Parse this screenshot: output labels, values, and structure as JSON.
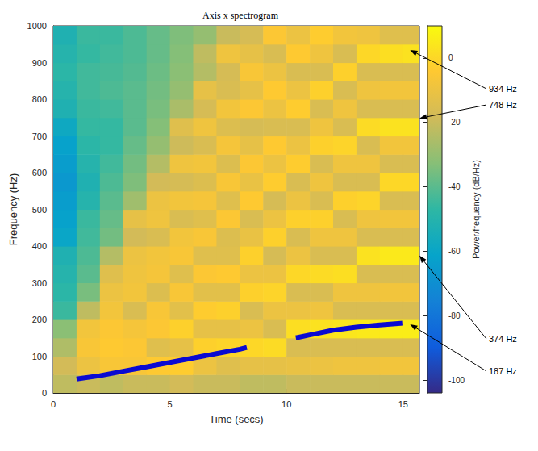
{
  "chart_data": {
    "type": "heatmap",
    "title": "Axis x spectrogram",
    "x_label": "Time (secs)",
    "y_label": "Frequency (Hz)",
    "xlim": [
      0,
      15.7
    ],
    "xticks": [
      0,
      5,
      10,
      15
    ],
    "ylim": [
      0,
      1000
    ],
    "yticks": [
      0,
      100,
      200,
      300,
      400,
      500,
      600,
      700,
      800,
      900,
      1000
    ],
    "grid": false,
    "cells": {
      "time": [
        0.5,
        1.5,
        2.5,
        3.5,
        4.5,
        5.5,
        6.5,
        7.5,
        8.5,
        9.5,
        10.5,
        11.5,
        12.5,
        13.5,
        14.5,
        15.5
      ],
      "frequency": [
        25,
        75,
        125,
        175,
        225,
        275,
        325,
        375,
        425,
        475,
        525,
        575,
        625,
        675,
        725,
        775,
        825,
        875,
        925,
        975
      ],
      "power": [
        [
          -22,
          -18,
          -25,
          -32,
          -45,
          -48,
          -50,
          -52,
          -60,
          -62,
          -64,
          -66,
          -64,
          -62,
          -58,
          -52,
          -50,
          -48,
          -50,
          -52
        ],
        [
          -20,
          -10,
          -6,
          -8,
          -22,
          -35,
          -40,
          -42,
          -44,
          -45,
          -50,
          -52,
          -50,
          -48,
          -46,
          -45,
          -44,
          -44,
          -46,
          -45
        ],
        [
          -22,
          -6,
          -4,
          -5,
          -8,
          -10,
          -14,
          -24,
          -36,
          -38,
          -40,
          -42,
          -44,
          -46,
          -46,
          -44,
          -42,
          -43,
          -44,
          -45
        ],
        [
          -20,
          -6,
          -5,
          -7,
          -16,
          -8,
          -9,
          -10,
          -18,
          -12,
          -28,
          -34,
          -36,
          -38,
          -40,
          -40,
          -40,
          -41,
          -42,
          -42
        ],
        [
          -20,
          -4,
          -14,
          -5,
          -6,
          -15,
          -7,
          -8,
          -16,
          -9,
          -10,
          -18,
          -24,
          -30,
          -33,
          -35,
          -36,
          -37,
          -38,
          -38
        ],
        [
          -18,
          -3,
          -12,
          -2,
          -13,
          -6,
          -14,
          -6,
          -8,
          -16,
          -8,
          -17,
          -9,
          -19,
          -14,
          -26,
          -30,
          -32,
          -33,
          -34
        ],
        [
          -20,
          -10,
          -2,
          -12,
          -3,
          -13,
          -5,
          -14,
          -6,
          -14,
          -7,
          -15,
          -8,
          -16,
          -9,
          -17,
          -12,
          -24,
          -22,
          -30
        ],
        [
          -20,
          -14,
          -1,
          -12,
          -2,
          -13,
          -4,
          -14,
          -15,
          -5,
          -14,
          -6,
          -15,
          -7,
          -15,
          -8,
          -16,
          -17,
          -9,
          -20
        ],
        [
          -22,
          -12,
          0,
          -10,
          -16,
          -2,
          -10,
          -2,
          -11,
          -16,
          -4,
          -11,
          -5,
          -12,
          -17,
          -5,
          -12,
          -6,
          -12,
          -17
        ],
        [
          -22,
          -12,
          1,
          -16,
          -10,
          -1,
          -10,
          -17,
          -2,
          -10,
          -17,
          -3,
          -10,
          -4,
          -16,
          -10,
          -4,
          -10,
          -16,
          -5
        ],
        [
          -20,
          -11,
          -16,
          2,
          -10,
          -16,
          0,
          -10,
          -16,
          -2,
          -10,
          -16,
          -3,
          -10,
          -16,
          -3,
          -10,
          -16,
          -4,
          -10
        ],
        [
          -20,
          -10,
          -16,
          3,
          -9,
          -16,
          1,
          -16,
          -9,
          -2,
          -16,
          -9,
          -16,
          -2,
          -9,
          -16,
          -2,
          -16,
          -9,
          -3
        ],
        [
          -20,
          -9,
          -16,
          4,
          -16,
          -9,
          2,
          -16,
          -9,
          -16,
          -2,
          -16,
          -9,
          -1,
          -16,
          -9,
          -16,
          -2,
          -16,
          -8
        ],
        [
          -20,
          -9,
          -16,
          5,
          -16,
          -9,
          -16,
          3,
          -16,
          -9,
          -1,
          -16,
          -9,
          -16,
          1,
          -16,
          -9,
          -16,
          0,
          -9
        ],
        [
          -20,
          -8,
          -16,
          6,
          -16,
          -8,
          -16,
          5,
          -16,
          -8,
          -16,
          0,
          -16,
          -8,
          3,
          -16,
          -8,
          -16,
          2,
          -14
        ],
        [
          -20,
          -8,
          -16,
          6,
          -16,
          -8,
          -16,
          5,
          -16,
          -8,
          -16,
          0,
          -16,
          -8,
          3,
          -16,
          -8,
          -16,
          3,
          -14
        ]
      ]
    },
    "colorbar": {
      "label": "Power/frequency (dB/Hz)",
      "range": [
        -104,
        10
      ],
      "ticks": [
        -100,
        -80,
        -60,
        -40,
        -20,
        0
      ]
    },
    "x": [
      1,
      2,
      3,
      4,
      5,
      6,
      7,
      8,
      8.3,
      9.4,
      10.4,
      11,
      12,
      13,
      14,
      15
    ],
    "series": [
      {
        "type": "line",
        "color": "#0a0ad2",
        "values": [
          38,
          47,
          59,
          71,
          83,
          95,
          107,
          119,
          124,
          null,
          150,
          158,
          171,
          179,
          185,
          190
        ]
      }
    ],
    "annotations": [
      {
        "text": "934 Hz",
        "x": 15.3,
        "y": 934
      },
      {
        "text": "748 Hz",
        "x": 15.7,
        "y": 748
      },
      {
        "text": "374 Hz",
        "x": 15.7,
        "y": 374
      },
      {
        "text": "187 Hz",
        "x": 15.3,
        "y": 187
      }
    ]
  }
}
